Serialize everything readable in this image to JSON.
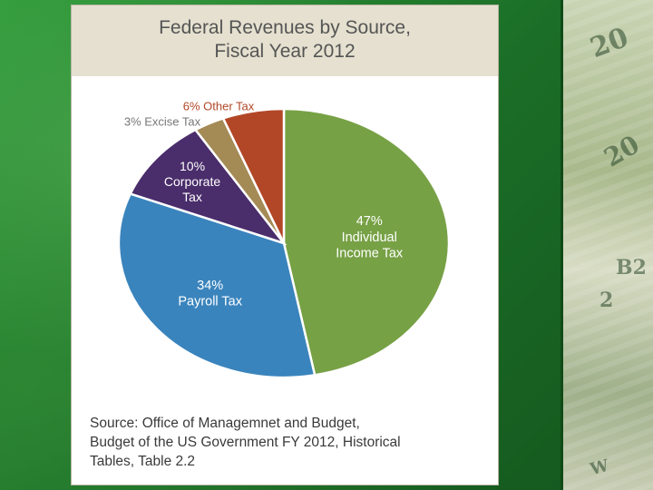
{
  "chart_data": {
    "type": "pie",
    "title": "Federal Revenues by Source,\nFiscal Year 2012",
    "slices": [
      {
        "name": "Individual Income Tax",
        "label": "47%\nIndividual\nIncome Tax",
        "value": 47,
        "color": "#77a145"
      },
      {
        "name": "Payroll Tax",
        "label": "34%\nPayroll Tax",
        "value": 34,
        "color": "#3a84bd"
      },
      {
        "name": "Corporate Tax",
        "label": "10%\nCorporate\nTax",
        "value": 10,
        "color": "#4a2d6b"
      },
      {
        "name": "Excise Tax",
        "label": "3% Excise Tax",
        "value": 3,
        "color": "#a48a55"
      },
      {
        "name": "Other Tax",
        "label": "6% Other Tax",
        "value": 6,
        "color": "#b24727"
      }
    ],
    "source": "Source: Office of Managemnet and Budget,\nBudget of the US Government FY 2012, Historical\nTables, Table 2.2"
  }
}
